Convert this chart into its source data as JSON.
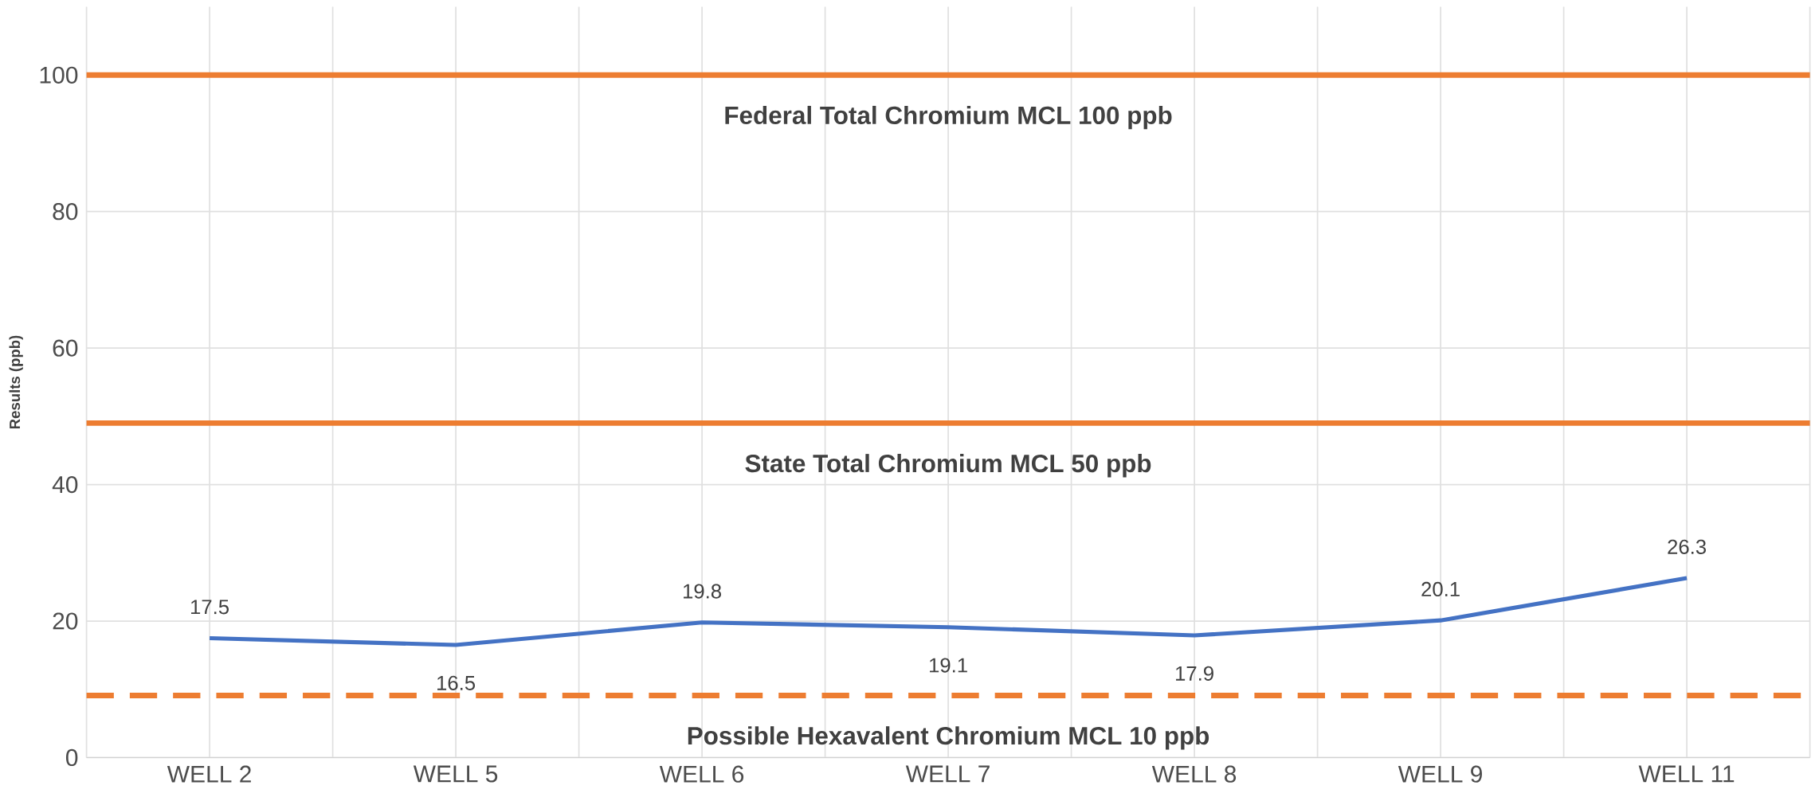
{
  "chart_data": {
    "type": "line",
    "ylabel": "Results (ppb)",
    "categories": [
      "WELL 2",
      "WELL 5",
      "WELL 6",
      "WELL 7",
      "WELL 8",
      "WELL 9",
      "WELL 11"
    ],
    "series": [
      {
        "color": "#4472c4",
        "values": [
          17.5,
          16.5,
          19.8,
          19.1,
          17.9,
          20.1,
          26.3
        ]
      }
    ],
    "ylim": [
      0,
      110
    ],
    "yticks": [
      0,
      20,
      40,
      60,
      80,
      100
    ],
    "grid": true,
    "data_labels": true,
    "marker": "none",
    "line_style": "solid",
    "ref_lines": [
      {
        "axis": "y",
        "value": 100,
        "label": "Federal Total Chromium MCL 100 ppb",
        "color": "#ed7d31",
        "line_style": "solid"
      },
      {
        "axis": "y",
        "value": 49,
        "label": "State Total Chromium MCL 50 ppb",
        "color": "#ed7d31",
        "line_style": "solid"
      },
      {
        "axis": "y",
        "value": 9.1,
        "label": "Possible Hexavalent Chromium MCL 10 ppb",
        "color": "#ed7d31",
        "line_style": "dashed"
      }
    ]
  }
}
